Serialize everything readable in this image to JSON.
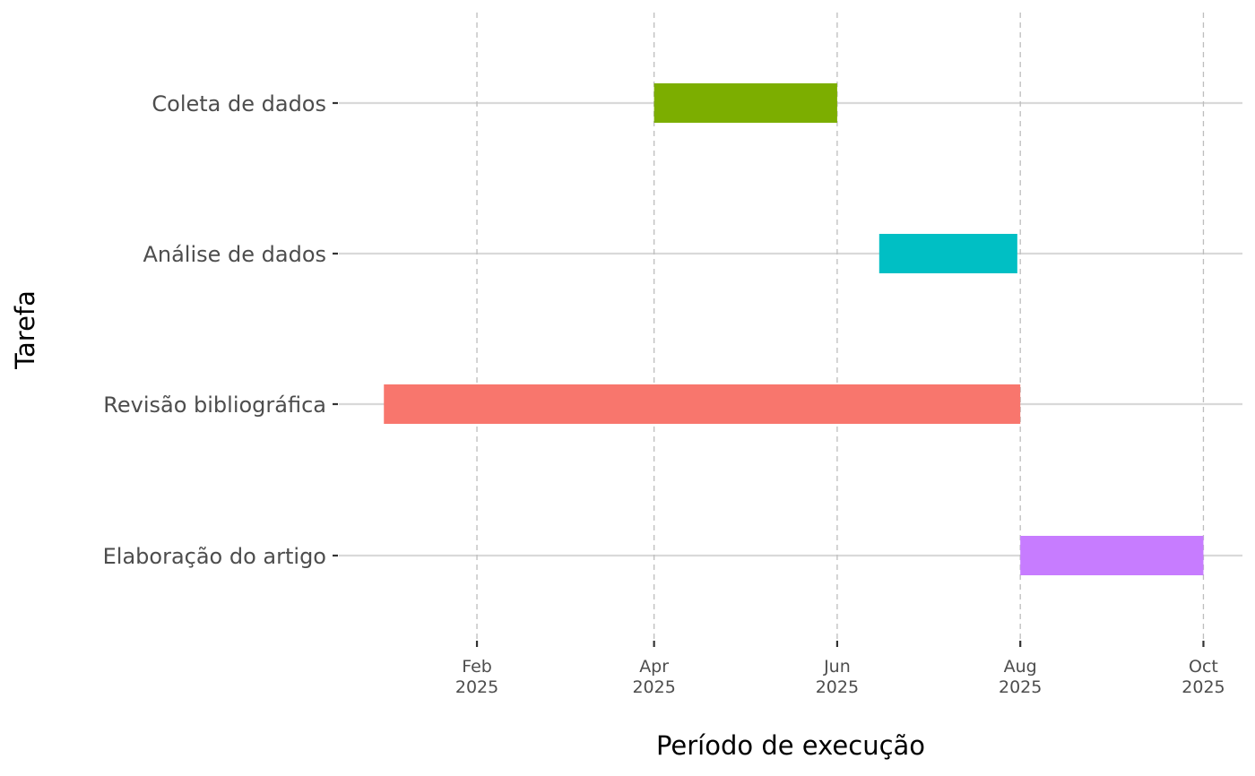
{
  "chart_data": {
    "type": "bar",
    "orientation": "horizontal",
    "subtype": "gantt",
    "xlabel": "Período de execução",
    "ylabel": "Tarefa",
    "categories": [
      "Elaboração do artigo",
      "Revisão bibliográfica",
      "Análise de dados",
      "Coleta de dados"
    ],
    "tasks": [
      {
        "name": "Coleta de dados",
        "start": "2025-04-01",
        "end": "2025-06-01",
        "color": "#7CAE00"
      },
      {
        "name": "Análise de dados",
        "start": "2025-06-15",
        "end": "2025-07-31",
        "color": "#00BFC4"
      },
      {
        "name": "Revisão bibliográfica",
        "start": "2025-01-01",
        "end": "2025-08-01",
        "color": "#F8766D"
      },
      {
        "name": "Elaboração do artigo",
        "start": "2025-08-01",
        "end": "2025-10-01",
        "color": "#C77CFF"
      }
    ],
    "xlim": [
      "2024-12-17",
      "2025-10-14"
    ],
    "x_ticks": [
      {
        "date": "2025-02-01",
        "month": "Feb",
        "year": "2025"
      },
      {
        "date": "2025-04-01",
        "month": "Apr",
        "year": "2025"
      },
      {
        "date": "2025-06-01",
        "month": "Jun",
        "year": "2025"
      },
      {
        "date": "2025-08-01",
        "month": "Aug",
        "year": "2025"
      },
      {
        "date": "2025-10-01",
        "month": "Oct",
        "year": "2025"
      }
    ],
    "grid": true,
    "legend": "none",
    "colors": {
      "gridline_major_y": "#d9d9d9",
      "gridline_x_dashed": "#bdbdbd",
      "tick_text": "#4d4d4d",
      "axis_title": "#000000"
    }
  }
}
